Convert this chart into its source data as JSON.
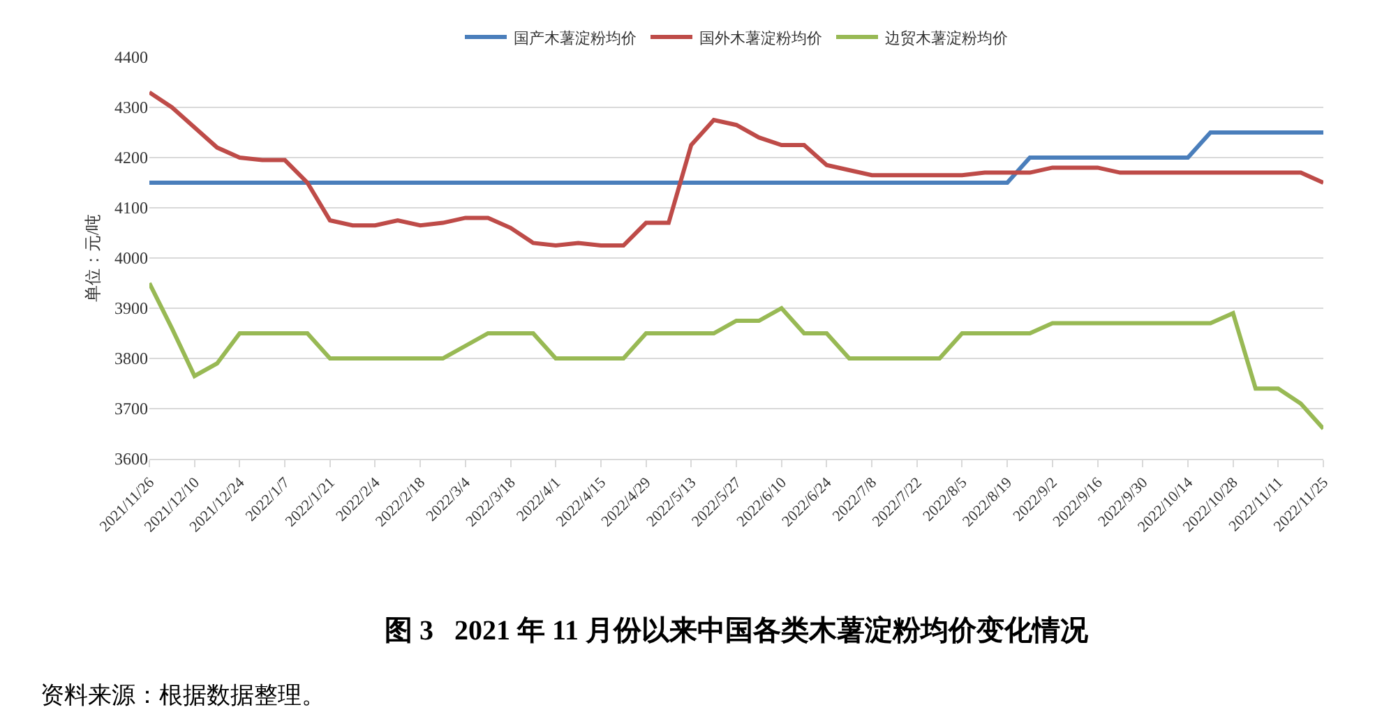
{
  "chart_data": {
    "type": "line",
    "title": "图 3   2021 年 11 月份以来中国各类木薯淀粉均价变化情况",
    "ylabel": "单位：元/吨",
    "x": [
      "2021-11-26",
      "2021-12-03",
      "2021-12-10",
      "2021-12-17",
      "2021-12-24",
      "2021-12-31",
      "2022-01-07",
      "2022-01-14",
      "2022-01-21",
      "2022-01-28",
      "2022-02-04",
      "2022-02-11",
      "2022-02-18",
      "2022-02-25",
      "2022-03-04",
      "2022-03-11",
      "2022-03-18",
      "2022-03-25",
      "2022-04-01",
      "2022-04-08",
      "2022-04-15",
      "2022-04-22",
      "2022-04-29",
      "2022-05-06",
      "2022-05-13",
      "2022-05-20",
      "2022-05-27",
      "2022-06-03",
      "2022-06-10",
      "2022-06-17",
      "2022-06-24",
      "2022-07-01",
      "2022-07-08",
      "2022-07-15",
      "2022-07-22",
      "2022-07-29",
      "2022-08-05",
      "2022-08-12",
      "2022-08-19",
      "2022-08-26",
      "2022-09-02",
      "2022-09-09",
      "2022-09-16",
      "2022-09-23",
      "2022-09-30",
      "2022-10-07",
      "2022-10-14",
      "2022-10-21",
      "2022-10-28",
      "2022-11-04",
      "2022-11-11",
      "2022-11-18",
      "2022-11-25"
    ],
    "series": [
      {
        "name": "国产木薯淀粉均价",
        "color": "#4a7ebb",
        "values": [
          4150,
          4150,
          4150,
          4150,
          4150,
          4150,
          4150,
          4150,
          4150,
          4150,
          4150,
          4150,
          4150,
          4150,
          4150,
          4150,
          4150,
          4150,
          4150,
          4150,
          4150,
          4150,
          4150,
          4150,
          4150,
          4150,
          4150,
          4150,
          4150,
          4150,
          4150,
          4150,
          4150,
          4150,
          4150,
          4150,
          4150,
          4150,
          4150,
          4200,
          4200,
          4200,
          4200,
          4200,
          4200,
          4200,
          4200,
          4250,
          4250,
          4250,
          4250,
          4250,
          4250
        ]
      },
      {
        "name": "国外木薯淀粉均价",
        "color": "#be4b48",
        "values": [
          4330,
          4300,
          4260,
          4220,
          4200,
          4195,
          4195,
          4150,
          4075,
          4065,
          4065,
          4075,
          4065,
          4070,
          4080,
          4080,
          4060,
          4030,
          4025,
          4030,
          4025,
          4025,
          4070,
          4070,
          4225,
          4275,
          4265,
          4240,
          4225,
          4225,
          4185,
          4175,
          4165,
          4165,
          4165,
          4165,
          4165,
          4170,
          4170,
          4170,
          4180,
          4180,
          4180,
          4170,
          4170,
          4170,
          4170,
          4170,
          4170,
          4170,
          4170,
          4170,
          4150
        ]
      },
      {
        "name": "边贸木薯淀粉均价",
        "color": "#98b954",
        "values": [
          3950,
          3860,
          3765,
          3790,
          3850,
          3850,
          3850,
          3850,
          3800,
          3800,
          3800,
          3800,
          3800,
          3800,
          3825,
          3850,
          3850,
          3850,
          3800,
          3800,
          3800,
          3800,
          3850,
          3850,
          3850,
          3850,
          3875,
          3875,
          3900,
          3850,
          3850,
          3800,
          3800,
          3800,
          3800,
          3800,
          3850,
          3850,
          3850,
          3850,
          3870,
          3870,
          3870,
          3870,
          3870,
          3870,
          3870,
          3870,
          3890,
          3740,
          3740,
          3710,
          3660
        ]
      }
    ],
    "xlim": [
      "2021-11-26",
      "2022-11-25"
    ],
    "xticks": [
      {
        "value": "2021-11-26",
        "label": "2021/11/26"
      },
      {
        "value": "2021-12-10",
        "label": "2021/12/10"
      },
      {
        "value": "2021-12-24",
        "label": "2021/12/24"
      },
      {
        "value": "2022-01-07",
        "label": "2022/1/7"
      },
      {
        "value": "2022-01-21",
        "label": "2022/1/21"
      },
      {
        "value": "2022-02-04",
        "label": "2022/2/4"
      },
      {
        "value": "2022-02-18",
        "label": "2022/2/18"
      },
      {
        "value": "2022-03-04",
        "label": "2022/3/4"
      },
      {
        "value": "2022-03-18",
        "label": "2022/3/18"
      },
      {
        "value": "2022-04-01",
        "label": "2022/4/1"
      },
      {
        "value": "2022-04-15",
        "label": "2022/4/15"
      },
      {
        "value": "2022-04-29",
        "label": "2022/4/29"
      },
      {
        "value": "2022-05-13",
        "label": "2022/5/13"
      },
      {
        "value": "2022-05-27",
        "label": "2022/5/27"
      },
      {
        "value": "2022-06-10",
        "label": "2022/6/10"
      },
      {
        "value": "2022-06-24",
        "label": "2022/6/24"
      },
      {
        "value": "2022-07-08",
        "label": "2022/7/8"
      },
      {
        "value": "2022-07-22",
        "label": "2022/7/22"
      },
      {
        "value": "2022-08-05",
        "label": "2022/8/5"
      },
      {
        "value": "2022-08-19",
        "label": "2022/8/19"
      },
      {
        "value": "2022-09-02",
        "label": "2022/9/2"
      },
      {
        "value": "2022-09-16",
        "label": "2022/9/16"
      },
      {
        "value": "2022-09-30",
        "label": "2022/9/30"
      },
      {
        "value": "2022-10-14",
        "label": "2022/10/14"
      },
      {
        "value": "2022-10-28",
        "label": "2022/10/28"
      },
      {
        "value": "2022-11-11",
        "label": "2022/11/11"
      },
      {
        "value": "2022-11-25",
        "label": "2022/11/25"
      }
    ],
    "ylim": [
      3600,
      4400
    ],
    "yticks": [
      3600,
      3700,
      3800,
      3900,
      4000,
      4100,
      4200,
      4300,
      4400
    ],
    "grid": "y",
    "legend": "top",
    "marker": "none",
    "line_style": "solid",
    "annotations": [
      "资料来源：根据数据整理。"
    ]
  }
}
